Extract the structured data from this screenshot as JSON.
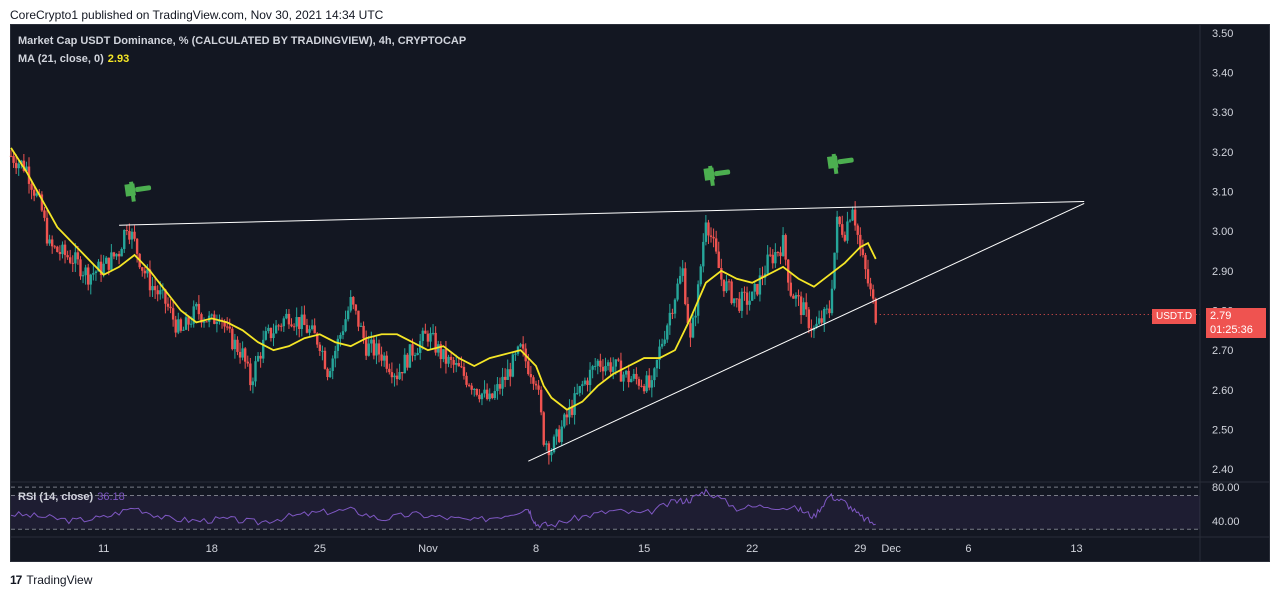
{
  "header": {
    "published_text": "CoreCrypto1 published on TradingView.com, Nov 30, 2021 14:34 UTC"
  },
  "legend": {
    "title": "Market Cap USDT Dominance, % (CALCULATED BY TRADINGVIEW), 4h, CRYPTOCAP",
    "ma_label": "MA (21, close, 0)",
    "ma_value": "2.93",
    "rsi_label": "RSI (14, close)",
    "rsi_value": "36.18"
  },
  "symbol_tag": "USDT.D",
  "price_box": {
    "price": "2.79",
    "countdown": "01:25:36"
  },
  "footer": {
    "logo": "17",
    "brand": "TradingView"
  },
  "colors": {
    "background": "#131722",
    "up": "#26a69a",
    "down": "#ef5350",
    "ma": "#f5e626",
    "rsi": "#7e57c2",
    "trendline": "#ffffff",
    "flag": "#4caf50"
  },
  "chart_data": [
    {
      "type": "line",
      "title": "Market Cap USDT Dominance, % (CALCULATED BY TRADINGVIEW), 4h, CRYPTOCAP",
      "subtype": "candlestick",
      "y_ticks": [
        "3.50",
        "3.40",
        "3.30",
        "3.20",
        "3.10",
        "3.00",
        "2.90",
        "2.80",
        "2.70",
        "2.60",
        "2.50",
        "2.40"
      ],
      "ylim": [
        2.37,
        3.52
      ],
      "x_ticks": [
        "11",
        "18",
        "25",
        "Nov",
        "8",
        "15",
        "22",
        "29",
        "Dec",
        "6",
        "13"
      ],
      "x_tick_days": [
        11,
        18,
        25,
        32,
        39,
        46,
        53,
        60,
        62,
        67,
        74
      ],
      "x_range_days": [
        5,
        82
      ],
      "approx_close_series": {
        "name": "USDT.D",
        "x_days": [
          5.0,
          6.0,
          7.0,
          7.5,
          8.0,
          9.0,
          10.0,
          11.0,
          12.0,
          12.5,
          13.0,
          13.5,
          14.0,
          15.0,
          15.5,
          16.0,
          17.0,
          18.0,
          18.5,
          19.0,
          20.0,
          20.5,
          21.0,
          21.5,
          22.0,
          23.0,
          24.0,
          25.0,
          25.5,
          26.0,
          27.0,
          27.5,
          28.0,
          29.0,
          30.0,
          31.0,
          32.0,
          33.0,
          34.0,
          35.0,
          36.0,
          37.0,
          38.0,
          38.5,
          39.0,
          39.5,
          40.0,
          41.0,
          42.0,
          43.0,
          44.0,
          45.0,
          46.0,
          46.5,
          47.0,
          48.0,
          48.5,
          49.0,
          49.5,
          50.0,
          51.0,
          52.0,
          53.0,
          54.0,
          55.0,
          55.5,
          56.0,
          57.0,
          58.0,
          58.5,
          59.0,
          59.5,
          60.0,
          60.5,
          61.0
        ],
        "close": [
          3.19,
          3.16,
          3.05,
          2.96,
          2.95,
          2.93,
          2.89,
          2.91,
          2.95,
          3.02,
          2.97,
          2.91,
          2.87,
          2.82,
          2.78,
          2.74,
          2.8,
          2.77,
          2.8,
          2.74,
          2.69,
          2.62,
          2.68,
          2.73,
          2.75,
          2.79,
          2.76,
          2.72,
          2.65,
          2.7,
          2.82,
          2.77,
          2.71,
          2.69,
          2.64,
          2.7,
          2.74,
          2.68,
          2.65,
          2.61,
          2.57,
          2.63,
          2.7,
          2.66,
          2.63,
          2.48,
          2.45,
          2.53,
          2.61,
          2.67,
          2.66,
          2.63,
          2.62,
          2.6,
          2.7,
          2.84,
          2.9,
          2.72,
          2.85,
          3.04,
          2.88,
          2.82,
          2.83,
          2.92,
          2.97,
          2.85,
          2.82,
          2.75,
          2.8,
          3.02,
          3.0,
          3.07,
          2.95,
          2.87,
          2.79
        ]
      }
    },
    {
      "type": "line",
      "title": "MA (21, close, 0)",
      "x_days": [
        5.0,
        6.0,
        7.0,
        8.0,
        9.0,
        10.0,
        11.0,
        12.0,
        13.0,
        14.0,
        15.0,
        16.0,
        17.0,
        18.0,
        19.0,
        20.0,
        21.0,
        22.0,
        23.0,
        24.0,
        25.0,
        26.0,
        27.0,
        28.0,
        29.0,
        30.0,
        31.0,
        32.0,
        33.0,
        34.0,
        35.0,
        36.0,
        37.0,
        38.0,
        39.0,
        39.5,
        40.0,
        41.0,
        42.0,
        43.0,
        44.0,
        45.0,
        46.0,
        47.0,
        48.0,
        49.0,
        50.0,
        51.0,
        52.0,
        53.0,
        54.0,
        55.0,
        56.0,
        57.0,
        58.0,
        59.0,
        60.0,
        60.5,
        61.0
      ],
      "values": [
        3.21,
        3.15,
        3.08,
        3.01,
        2.97,
        2.93,
        2.89,
        2.91,
        2.94,
        2.9,
        2.85,
        2.8,
        2.77,
        2.78,
        2.77,
        2.75,
        2.72,
        2.7,
        2.71,
        2.73,
        2.74,
        2.72,
        2.71,
        2.73,
        2.74,
        2.74,
        2.72,
        2.7,
        2.71,
        2.68,
        2.66,
        2.68,
        2.69,
        2.7,
        2.66,
        2.61,
        2.58,
        2.55,
        2.57,
        2.61,
        2.64,
        2.66,
        2.68,
        2.68,
        2.7,
        2.78,
        2.87,
        2.9,
        2.88,
        2.87,
        2.89,
        2.91,
        2.88,
        2.86,
        2.89,
        2.92,
        2.96,
        2.97,
        2.93
      ]
    },
    {
      "type": "line",
      "title": "RSI (14, close)",
      "y_ticks": [
        "80.00",
        "40.00"
      ],
      "guide_levels": [
        80,
        70,
        30
      ],
      "ylim": [
        22,
        86
      ],
      "x_days": [
        5.0,
        7.0,
        9.0,
        11.0,
        13.0,
        15.0,
        17.0,
        19.0,
        21.0,
        23.0,
        25.0,
        27.0,
        29.0,
        31.0,
        33.0,
        35.0,
        37.0,
        38.5,
        39.0,
        40.0,
        42.0,
        44.0,
        46.0,
        48.0,
        49.0,
        50.0,
        52.0,
        54.0,
        56.0,
        57.0,
        58.0,
        59.0,
        60.0,
        61.0
      ],
      "values": [
        48,
        45,
        40,
        44,
        56,
        43,
        40,
        42,
        38,
        45,
        50,
        53,
        42,
        48,
        44,
        40,
        47,
        55,
        36,
        35,
        45,
        52,
        48,
        63,
        65,
        76,
        55,
        58,
        54,
        45,
        70,
        62,
        45,
        36
      ]
    }
  ],
  "annotations": {
    "resistance_line": {
      "from": [
        12.0,
        3.015
      ],
      "to": [
        74.5,
        3.075
      ]
    },
    "support_line": {
      "from": [
        38.5,
        2.42
      ],
      "to": [
        74.5,
        3.07
      ]
    },
    "flags_at_peaks": [
      {
        "x_day": 13.0,
        "y": 3.08
      },
      {
        "x_day": 50.5,
        "y": 3.12
      },
      {
        "x_day": 58.5,
        "y": 3.15
      }
    ]
  }
}
